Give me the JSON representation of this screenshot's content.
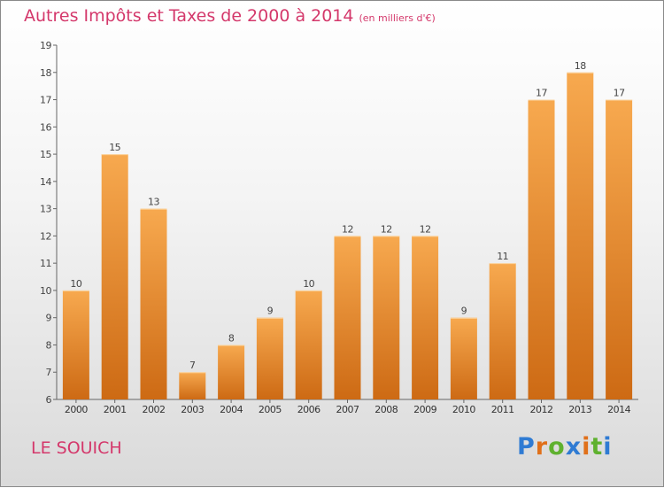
{
  "header": {
    "title": "Autres Impôts et Taxes de 2000 à 2014",
    "unit": "(en milliers d'€)"
  },
  "footer": {
    "place": "LE SOUICH",
    "brand": "Proxiti"
  },
  "colors": {
    "title": "#d4386b",
    "bar_top": "#f7a94f",
    "bar_bottom": "#cd6a14",
    "brand_letters": [
      "#2f7bd3",
      "#e0701a",
      "#5fb12f",
      "#2f7bd3",
      "#e0701a",
      "#5fb12f",
      "#2f7bd3"
    ]
  },
  "chart_data": {
    "type": "bar",
    "title": "Autres Impôts et Taxes de 2000 à 2014",
    "subtitle": "(en milliers d'€)",
    "categories": [
      "2000",
      "2001",
      "2002",
      "2003",
      "2004",
      "2005",
      "2006",
      "2007",
      "2008",
      "2009",
      "2010",
      "2011",
      "2012",
      "2013",
      "2014"
    ],
    "values": [
      10,
      15,
      13,
      7,
      8,
      9,
      10,
      12,
      12,
      12,
      9,
      11,
      17,
      18,
      17
    ],
    "ylim": [
      6,
      19
    ],
    "yticks": [
      6,
      7,
      8,
      9,
      10,
      11,
      12,
      13,
      14,
      15,
      16,
      17,
      18,
      19
    ],
    "grid": false,
    "data_labels": true
  }
}
